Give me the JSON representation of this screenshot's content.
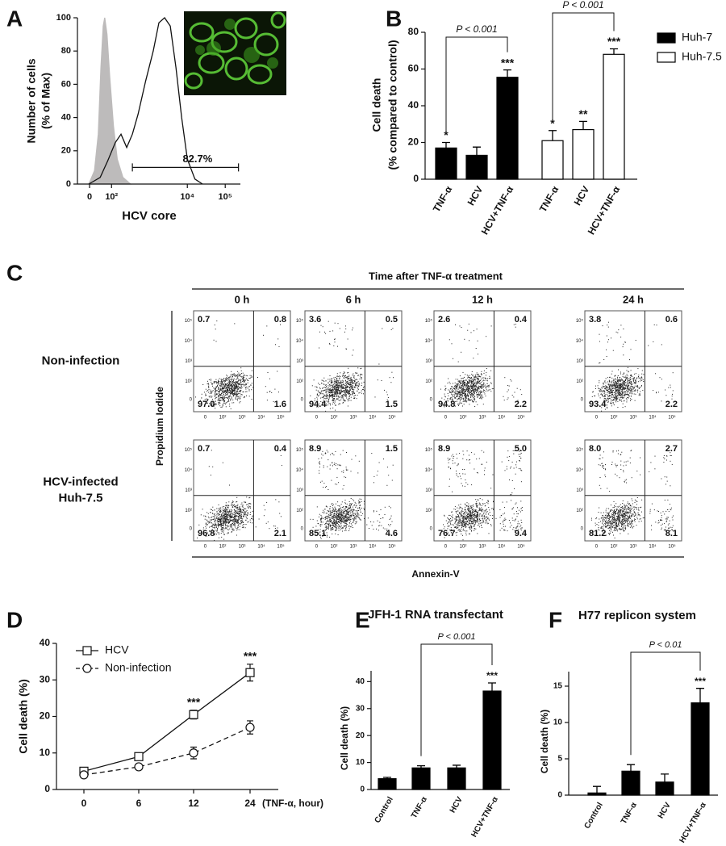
{
  "chart_data": [
    {
      "panel": "A",
      "type": "flow_histogram",
      "ylabel": [
        "Number of cells",
        "(% of Max)"
      ],
      "xlabel": "HCV core",
      "xlim": [
        0,
        4.3
      ],
      "ylim": [
        0,
        100
      ],
      "yticks": [
        0,
        20,
        40,
        60,
        80,
        100
      ],
      "xticks": [
        {
          "value": 0.32,
          "label": "0"
        },
        {
          "value": 0.9,
          "label": "10²"
        },
        {
          "value": 2.9,
          "label": "10⁴"
        },
        {
          "value": 3.9,
          "label": "10⁵"
        }
      ],
      "series": [
        {
          "color": "#bdbbbb",
          "fill": true,
          "x": [
            0.3,
            0.45,
            0.55,
            0.62,
            0.68,
            0.72,
            0.78,
            0.85,
            0.95,
            1.05,
            1.2,
            1.4
          ],
          "values": [
            0,
            8,
            30,
            70,
            95,
            100,
            90,
            65,
            35,
            15,
            4,
            0
          ]
        },
        {
          "color": "#111111",
          "fill": false,
          "x": [
            0.3,
            0.6,
            0.8,
            1.0,
            1.15,
            1.3,
            1.45,
            1.6,
            1.8,
            2.0,
            2.15,
            2.3,
            2.45,
            2.6,
            2.75,
            2.9,
            3.1,
            3.3
          ],
          "values": [
            0,
            4,
            14,
            25,
            30,
            22,
            30,
            42,
            62,
            80,
            97,
            100,
            95,
            70,
            40,
            15,
            3,
            0
          ]
        }
      ],
      "gate": {
        "range": [
          1.45,
          4.25
        ],
        "y": 10,
        "label": "82.7%"
      }
    },
    {
      "panel": "B",
      "type": "bar",
      "ylabel": [
        "Cell death",
        "(% compared to control)"
      ],
      "ylim": [
        0,
        80
      ],
      "yticks": [
        0,
        20,
        40,
        60,
        80
      ],
      "categories": [
        "TNF-α",
        "HCV",
        "HCV+TNF-α"
      ],
      "legend": "right",
      "series": [
        {
          "name": "Huh-7",
          "color": "#000000",
          "values": [
            17,
            13,
            55.5
          ],
          "errors": [
            3,
            4.5,
            4
          ],
          "stars": [
            "*",
            null,
            "***"
          ]
        },
        {
          "name": "Huh-7.5",
          "color": "#ffffff",
          "values": [
            21,
            27,
            68
          ],
          "errors": [
            5.5,
            4.5,
            3
          ],
          "stars": [
            "*",
            "**",
            "***"
          ]
        }
      ],
      "brackets": [
        {
          "series": "Huh-7",
          "categories": [
            "TNF-α",
            "HCV+TNF-α"
          ],
          "label": "P < 0.001"
        },
        {
          "series": "Huh-7.5",
          "categories": [
            "TNF-α",
            "HCV+TNF-α"
          ],
          "label": "P < 0.001"
        }
      ]
    },
    {
      "panel": "C",
      "type": "dot_plot_grid",
      "title": "Time after TNF-α treatment",
      "columns": [
        "0 h",
        "6 h",
        "12 h",
        "24 h"
      ],
      "rows": [
        [
          "Non-infection"
        ],
        [
          "HCV-infected",
          "Huh-7.5"
        ]
      ],
      "ylabel": "Propidium Iodide",
      "xlabel": "Annexin-V",
      "tick_labels": [
        "0",
        "10²",
        "10³",
        "10⁴",
        "10⁵"
      ],
      "quadrants": [
        [
          [
            "0.7",
            "0.8",
            "97.0",
            "1.6"
          ],
          [
            "3.6",
            "0.5",
            "94.4",
            "1.5"
          ],
          [
            "2.6",
            "0.4",
            "94.8",
            "2.2"
          ],
          [
            "3.8",
            "0.6",
            "93.4",
            "2.2"
          ]
        ],
        [
          [
            "0.7",
            "0.4",
            "96.8",
            "2.1"
          ],
          [
            "8.9",
            "1.5",
            "85.1",
            "4.6"
          ],
          [
            "8.9",
            "5.0",
            "76.7",
            "9.4"
          ],
          [
            "8.0",
            "2.7",
            "81.2",
            "8.1"
          ]
        ]
      ]
    },
    {
      "panel": "D",
      "type": "line",
      "ylabel": "Cell death (%)",
      "xlabel": "(TNF-α, hour)",
      "ylim": [
        0,
        40
      ],
      "yticks": [
        0,
        10,
        20,
        30,
        40
      ],
      "categories": [
        "0",
        "6",
        "12",
        "24"
      ],
      "legend": "top-left",
      "stars": [
        null,
        null,
        "***",
        "***"
      ],
      "series": [
        {
          "name": "HCV",
          "color": "#111111",
          "marker": "square",
          "dashed": false,
          "values": [
            5,
            9,
            20.5,
            32
          ],
          "errors": [
            0.5,
            0.5,
            1.2,
            2.3
          ]
        },
        {
          "name": "Non-infection",
          "color": "#111111",
          "marker": "circle",
          "dashed": true,
          "values": [
            4,
            6.2,
            10,
            17
          ],
          "errors": [
            0.4,
            0.3,
            1.6,
            1.8
          ]
        }
      ]
    },
    {
      "panel": "E",
      "type": "bar",
      "title": "JFH-1 RNA transfectant",
      "ylabel": "Cell death (%)",
      "ylim": [
        0,
        44
      ],
      "yticks": [
        0,
        10,
        20,
        30,
        40
      ],
      "categories": [
        "Control",
        "TNF-α",
        "HCV",
        "HCV+TNF-α"
      ],
      "color": "#000000",
      "values": [
        4,
        8,
        8,
        36.5
      ],
      "errors": [
        0.5,
        0.8,
        1,
        3
      ],
      "stars": [
        null,
        null,
        null,
        "***"
      ],
      "bracket": {
        "categories": [
          "TNF-α",
          "HCV+TNF-α"
        ],
        "label": "P < 0.001"
      }
    },
    {
      "panel": "F",
      "type": "bar",
      "title": "H77 replicon system",
      "ylabel": "Cell death (%)",
      "ylim": [
        0,
        17
      ],
      "yticks": [
        0,
        5,
        10,
        15
      ],
      "categories": [
        "Control",
        "TNF-α",
        "HCV",
        "HCV+TNF-α"
      ],
      "color": "#000000",
      "values": [
        0.3,
        3.3,
        1.8,
        12.7
      ],
      "errors": [
        0.9,
        0.9,
        1.1,
        2
      ],
      "stars": [
        null,
        null,
        null,
        "***"
      ],
      "bracket": {
        "categories": [
          "TNF-α",
          "HCV+TNF-α"
        ],
        "label": "P < 0.01"
      }
    }
  ]
}
